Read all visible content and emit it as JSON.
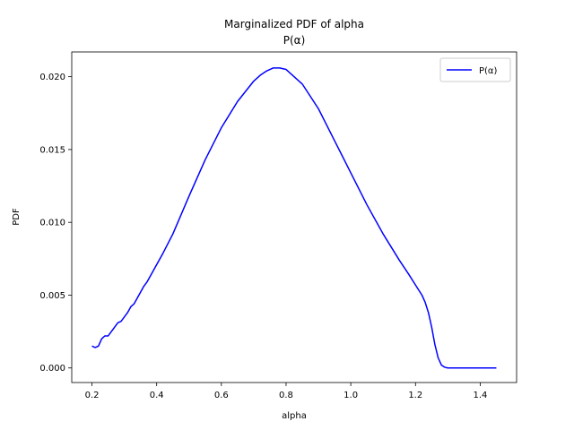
{
  "chart_data": {
    "type": "line",
    "title": "Marginalized PDF of alpha",
    "subtitle": "P(α)",
    "xlabel": "alpha",
    "ylabel": "PDF",
    "xlim": [
      0.1375,
      1.5125
    ],
    "ylim": [
      -0.001,
      0.0217
    ],
    "x_ticks": [
      0.2,
      0.4,
      0.6,
      0.8,
      1.0,
      1.2,
      1.4
    ],
    "x_tick_labels": [
      "0.2",
      "0.4",
      "0.6",
      "0.8",
      "1.0",
      "1.2",
      "1.4"
    ],
    "y_ticks": [
      0.0,
      0.005,
      0.01,
      0.015,
      0.02
    ],
    "y_tick_labels": [
      "0.000",
      "0.005",
      "0.010",
      "0.015",
      "0.020"
    ],
    "grid": false,
    "legend_position": "top-right",
    "series": [
      {
        "name": "P(α)",
        "color": "#0000ff",
        "x": [
          0.2,
          0.21,
          0.22,
          0.23,
          0.24,
          0.25,
          0.26,
          0.27,
          0.28,
          0.29,
          0.3,
          0.31,
          0.32,
          0.33,
          0.34,
          0.35,
          0.36,
          0.37,
          0.38,
          0.4,
          0.42,
          0.45,
          0.5,
          0.55,
          0.6,
          0.65,
          0.7,
          0.72,
          0.74,
          0.76,
          0.78,
          0.8,
          0.85,
          0.9,
          0.95,
          1.0,
          1.05,
          1.1,
          1.15,
          1.18,
          1.2,
          1.22,
          1.23,
          1.24,
          1.25,
          1.26,
          1.27,
          1.28,
          1.29,
          1.3,
          1.32,
          1.35,
          1.4,
          1.45
        ],
        "y": [
          0.0015,
          0.0014,
          0.0015,
          0.002,
          0.0022,
          0.0022,
          0.0025,
          0.0028,
          0.0031,
          0.0032,
          0.0035,
          0.0038,
          0.0042,
          0.0044,
          0.0048,
          0.0052,
          0.0056,
          0.0059,
          0.0063,
          0.0071,
          0.0079,
          0.0092,
          0.0118,
          0.0143,
          0.0165,
          0.0183,
          0.0197,
          0.0201,
          0.0204,
          0.0206,
          0.0206,
          0.0205,
          0.0195,
          0.0178,
          0.0156,
          0.0134,
          0.0112,
          0.0092,
          0.0074,
          0.0064,
          0.0057,
          0.005,
          0.0045,
          0.0038,
          0.0028,
          0.0016,
          0.0007,
          0.0002,
          5e-05,
          0.0,
          0.0,
          0.0,
          0.0,
          0.0
        ]
      }
    ]
  }
}
